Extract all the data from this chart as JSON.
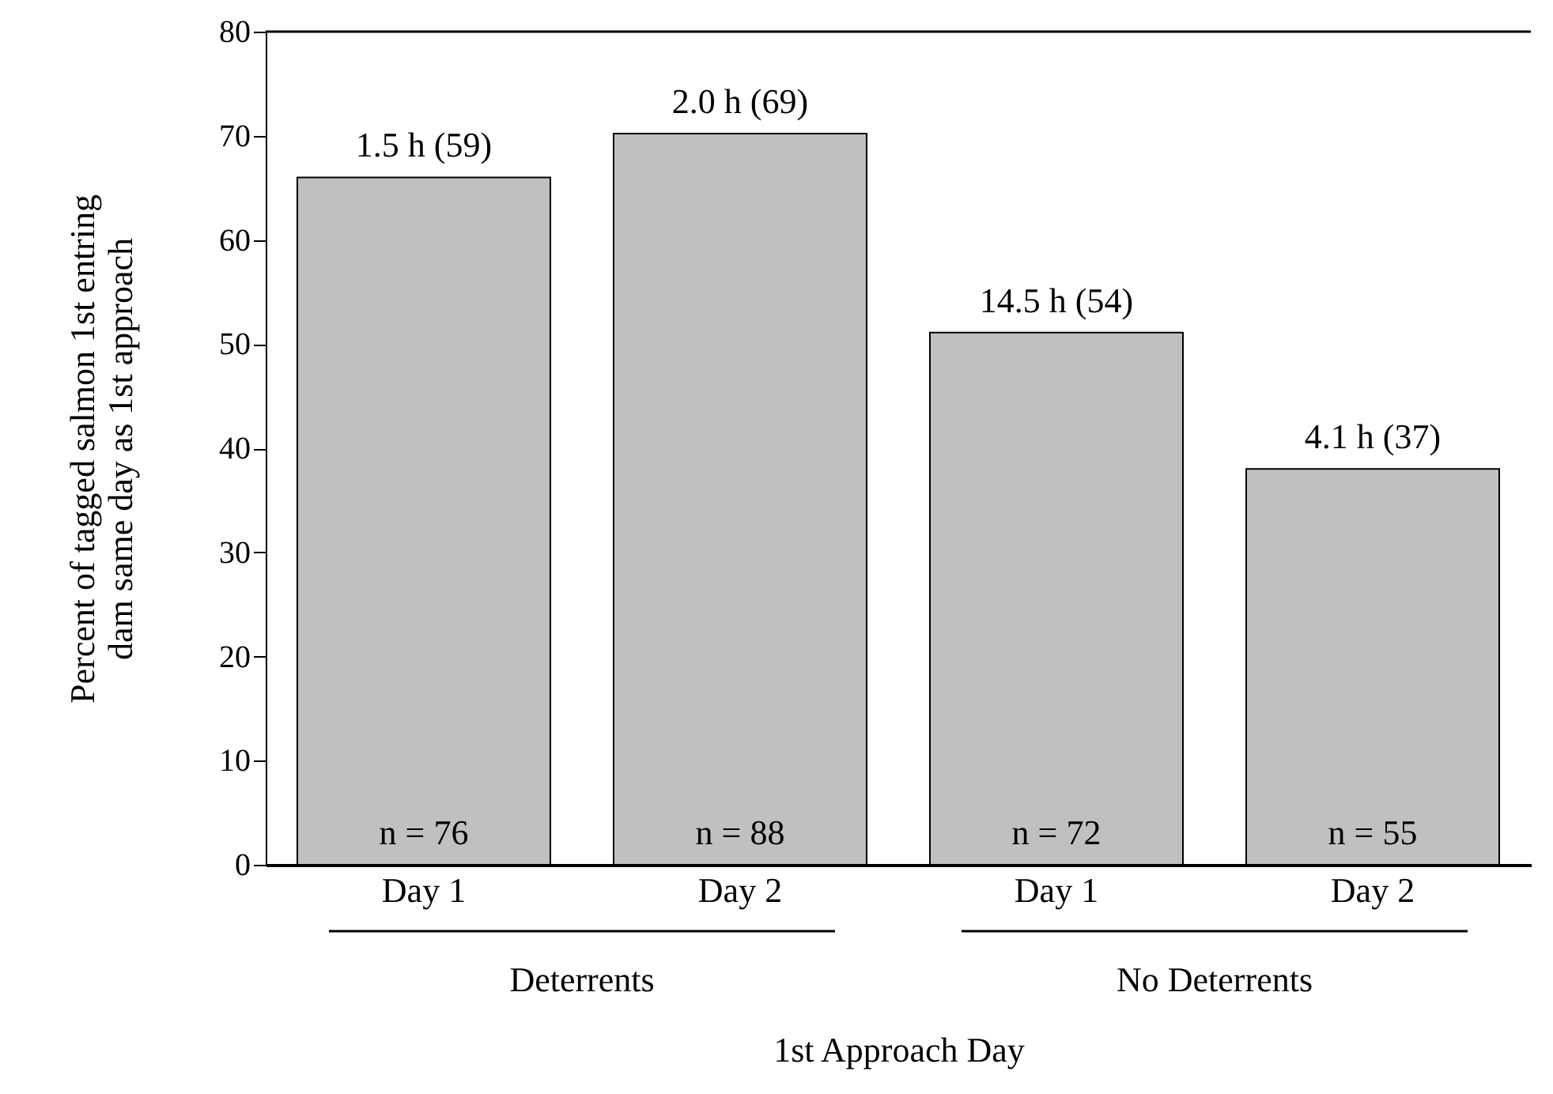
{
  "chart_data": {
    "type": "bar",
    "categories": [
      "Day 1",
      "Day 2",
      "Day 1",
      "Day 2"
    ],
    "values": [
      66.0,
      70.2,
      51.1,
      38.0
    ],
    "color": "#c0c0c0",
    "annotations": [
      "1.5 h (59)",
      "2.0 h (69)",
      "14.5 h (54)",
      "4.1 h (37)",
      "n = 76",
      "n = 88",
      "n = 72",
      "n = 55",
      "Deterrents",
      "No Deterrents"
    ],
    "xlabel": "1st Approach Day",
    "ylabel": "Percent of tagged salmon 1st entring\ndam same day as 1st approach",
    "ylim": [
      0,
      80
    ],
    "yticks": [
      0,
      10,
      20,
      30,
      40,
      50,
      60,
      70,
      80
    ],
    "grid": false
  }
}
